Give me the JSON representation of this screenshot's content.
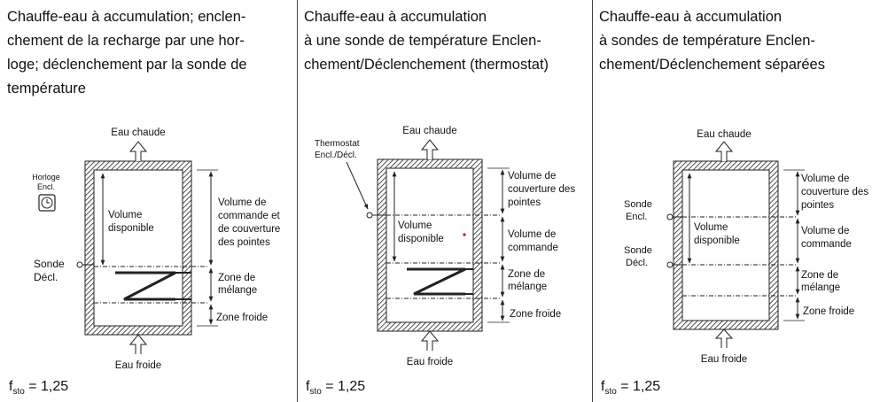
{
  "panels": [
    {
      "heading": [
        "Chauffe-eau à accumulation; enclen-",
        "chement de la recharge par une hor-",
        "loge; déclenchement par la sonde de",
        "température"
      ],
      "hot_water": "Eau chaude",
      "cold_water": "Eau froide",
      "inner_label": [
        "Volume",
        "disponible"
      ],
      "right_labels": [
        [
          "Volume de",
          "commande et",
          "de couverture",
          "des pointes"
        ],
        [
          "Zone de",
          "mélange"
        ],
        [
          "Zone froide"
        ]
      ],
      "left_labels": [
        [
          "Horloge",
          "Encl."
        ],
        [
          "Sonde",
          "Décl."
        ]
      ],
      "factor": "1,25"
    },
    {
      "heading": [
        "Chauffe-eau à accumulation",
        "à une sonde de température Enclen-",
        "chement/Déclenchement (thermostat)"
      ],
      "hot_water": "Eau chaude",
      "cold_water": "Eau froide",
      "inner_label": [
        "Volume",
        "disponible"
      ],
      "right_labels": [
        [
          "Volume de",
          "couverture des",
          "pointes"
        ],
        [
          "Volume de",
          "commande"
        ],
        [
          "Zone de",
          "mélange"
        ],
        [
          "Zone froide"
        ]
      ],
      "left_labels": [
        [
          "Thermostat",
          "Encl./Décl."
        ]
      ],
      "factor": "1,25"
    },
    {
      "heading": [
        "Chauffe-eau à accumulation",
        "à sondes de température Enclen-",
        "chement/Déclenchement séparées"
      ],
      "hot_water": "Eau chaude",
      "cold_water": "Eau froide",
      "inner_label": [
        "Volume",
        "disponible"
      ],
      "right_labels": [
        [
          "Volume de",
          "couverture des",
          "pointes"
        ],
        [
          "Volume de",
          "commande"
        ],
        [
          "Zone de",
          "mélange"
        ],
        [
          "Zone froide"
        ]
      ],
      "left_labels": [
        [
          "Sonde",
          "Encl."
        ],
        [
          "Sonde",
          "Décl."
        ]
      ],
      "factor": "1,25"
    }
  ],
  "factor_label": "f",
  "factor_sub": "sto",
  "colors": {
    "line": "#222222",
    "marker": "#d00000"
  }
}
